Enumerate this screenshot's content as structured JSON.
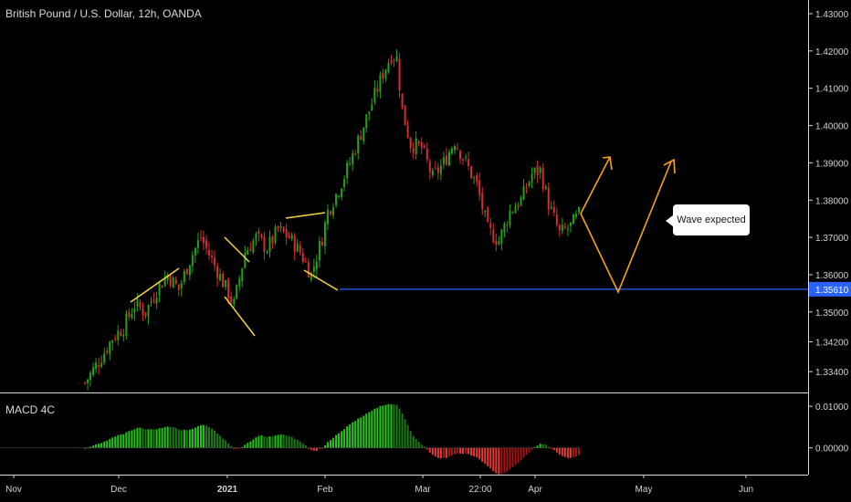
{
  "header": {
    "title": "British Pound / U.S. Dollar, 12h, OANDA"
  },
  "indicator": {
    "label": "MACD 4C"
  },
  "callout": {
    "text": "Wave expected"
  },
  "colors": {
    "up": "#26a017",
    "down": "#d32f2f",
    "support": "#2962ff",
    "annotation": "#f7a21b",
    "trend": "#f5d547",
    "background": "#000000",
    "grid": "#141414"
  },
  "chart_data": [
    {
      "type": "candlestick",
      "title": "British Pound / U.S. Dollar, 12h, OANDA",
      "y_ticks": [
        "1.43000",
        "1.42000",
        "1.41000",
        "1.40000",
        "1.39000",
        "1.38000",
        "1.37000",
        "1.36000",
        "1.35000",
        "1.34200",
        "1.33400"
      ],
      "x_ticks": [
        "Nov",
        "Dec",
        "2021",
        "Feb",
        "Mar",
        "22:00",
        "Apr",
        "May",
        "Jun"
      ],
      "ylim": [
        1.328,
        1.433
      ],
      "support_level": {
        "value": 1.3561,
        "label": "1.35610"
      },
      "price_path": [
        [
          0,
          1.331
        ],
        [
          6,
          1.338
        ],
        [
          10,
          1.343
        ],
        [
          14,
          1.346
        ],
        [
          18,
          1.352
        ],
        [
          22,
          1.35
        ],
        [
          26,
          1.356
        ],
        [
          30,
          1.36
        ],
        [
          34,
          1.356
        ],
        [
          38,
          1.364
        ],
        [
          42,
          1.37
        ],
        [
          46,
          1.364
        ],
        [
          50,
          1.358
        ],
        [
          54,
          1.352
        ],
        [
          58,
          1.366
        ],
        [
          62,
          1.37
        ],
        [
          66,
          1.367
        ],
        [
          70,
          1.372
        ],
        [
          74,
          1.37
        ],
        [
          78,
          1.366
        ],
        [
          82,
          1.36
        ],
        [
          86,
          1.37
        ],
        [
          88,
          1.377
        ],
        [
          92,
          1.383
        ],
        [
          96,
          1.39
        ],
        [
          100,
          1.398
        ],
        [
          104,
          1.406
        ],
        [
          108,
          1.414
        ],
        [
          111,
          1.419
        ],
        [
          113,
          1.418
        ],
        [
          115,
          1.404
        ],
        [
          118,
          1.395
        ],
        [
          122,
          1.394
        ],
        [
          126,
          1.386
        ],
        [
          130,
          1.39
        ],
        [
          134,
          1.396
        ],
        [
          138,
          1.39
        ],
        [
          142,
          1.384
        ],
        [
          146,
          1.372
        ],
        [
          150,
          1.369
        ],
        [
          154,
          1.377
        ],
        [
          158,
          1.38
        ],
        [
          162,
          1.387
        ],
        [
          165,
          1.388
        ],
        [
          168,
          1.379
        ],
        [
          172,
          1.371
        ],
        [
          176,
          1.373
        ],
        [
          179,
          1.376
        ]
      ],
      "projection": {
        "path1": [
          [
            1.376,
            1.3885
          ]
        ],
        "path2": [
          [
            1.376,
            1.3561,
            1.3885
          ]
        ]
      },
      "annotations": [
        {
          "type": "trendlines",
          "count": 4
        },
        {
          "type": "horizontal-line",
          "value": 1.3561
        },
        {
          "type": "callout",
          "text": "Wave expected"
        }
      ]
    },
    {
      "type": "histogram",
      "title": "MACD 4C",
      "y_ticks": [
        "0.01000",
        "0.00000"
      ],
      "ylim": [
        -0.006,
        0.012
      ]
    }
  ]
}
